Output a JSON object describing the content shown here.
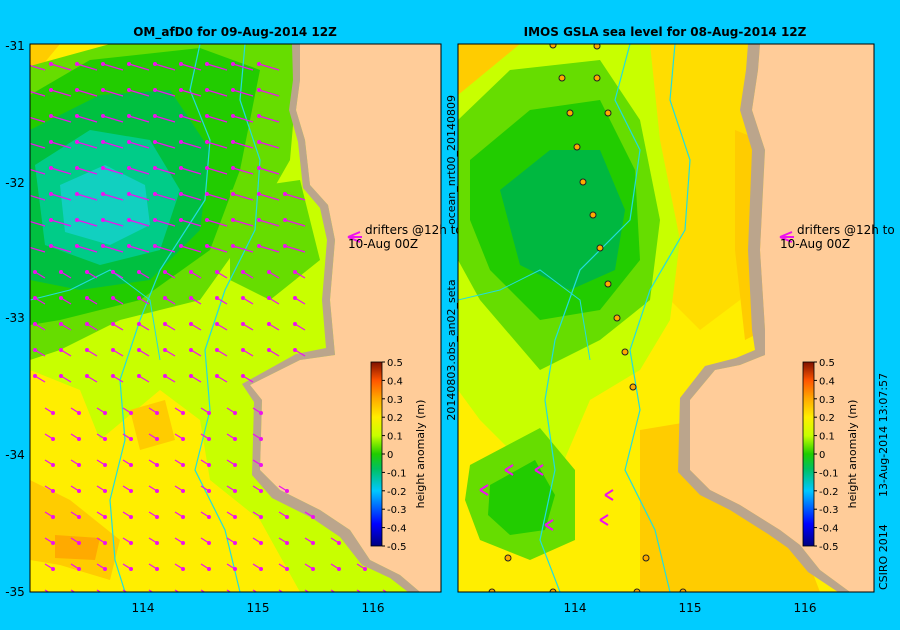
{
  "left_panel": {
    "title": "OM_afD0 for 09-Aug-2014 12Z",
    "annotation_line1": "drifters @12h to",
    "annotation_line2": "10-Aug 00Z",
    "colorbar_label": "height anomaly (m)",
    "ticks_x": [
      "114",
      "115",
      "116"
    ],
    "ticks_y": [
      "-31",
      "-32",
      "-33",
      "-34",
      "-35"
    ]
  },
  "right_panel": {
    "title": "IMOS GSLA sea level  for 08-Aug-2014 12Z",
    "annotation_line1": "drifters @12h to",
    "annotation_line2": "10-Aug 00Z",
    "colorbar_label": "height anomaly (m)",
    "side_label_top": "ocean_nrt00_20140809",
    "side_label_bottom": "20140803.obs_an02_seta",
    "ticks_x": [
      "114",
      "115",
      "116"
    ]
  },
  "colorbar_ticks": [
    "0.5",
    "0.4",
    "0.3",
    "0.2",
    "0.1",
    "0",
    "-0.1",
    "-0.2",
    "-0.3",
    "-0.4",
    "-0.5"
  ],
  "credit": "CSIRO 2014",
  "timestamp": "13-Aug-2014 13:07:57",
  "colors": {
    "frame_bg": "#00ccff",
    "land": "#ffcc99",
    "shelf": "#bba58c",
    "arrow": "#ee11ee",
    "bathy": "#22dddd"
  }
}
